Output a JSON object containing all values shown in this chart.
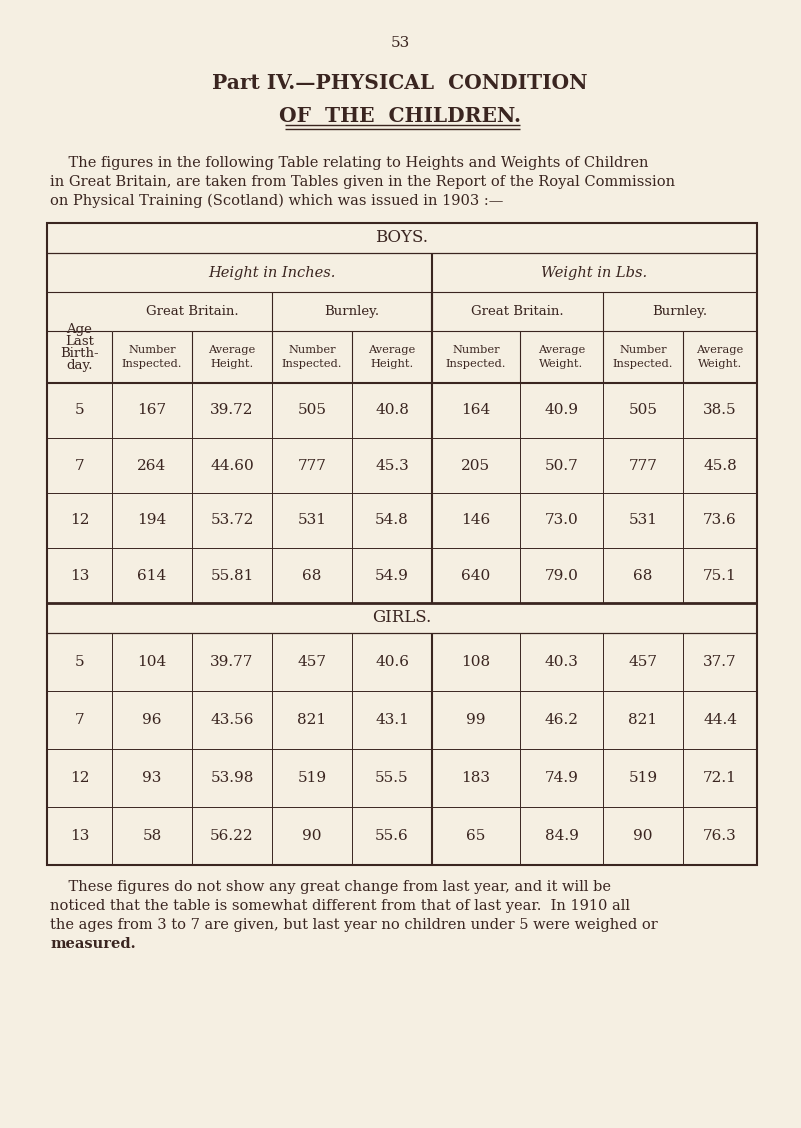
{
  "bg_color": "#f5efe2",
  "text_color": "#3a2520",
  "page_number": "53",
  "title_line1": "Part IV.—PHYSICAL  CONDITION",
  "title_line2": "OF  THE  CHILDREN.",
  "intro_text_1": "    The figures in the following Table relating to Heights and Weights of Children",
  "intro_text_2": "in Great Britain, are taken from Tables given in the Report of the Royal Commission",
  "intro_text_3": "on Physical Training (Scotland) which was issued in 1903 :—",
  "boys_label": "BOYS.",
  "girls_label": "GIRLS.",
  "col_header_1": "Height in Inches.",
  "col_header_2": "Weight in Lbs.",
  "sub_header_gb": "Great Britain.",
  "sub_header_bu": "Burnley.",
  "age_label_1": "Age",
  "age_label_2": "Last",
  "age_label_3": "Birth-",
  "age_label_4": "day.",
  "boys_data": [
    [
      5,
      "167",
      "39.72",
      "505",
      "40.8",
      "164",
      "40.9",
      "505",
      "38.5"
    ],
    [
      7,
      "264",
      "44.60",
      "777",
      "45.3",
      "205",
      "50.7",
      "777",
      "45.8"
    ],
    [
      12,
      "194",
      "53.72",
      "531",
      "54.8",
      "146",
      "73.0",
      "531",
      "73.6"
    ],
    [
      13,
      "614",
      "55.81",
      "68",
      "54.9",
      "640",
      "79.0",
      "68",
      "75.1"
    ]
  ],
  "girls_data": [
    [
      5,
      "104",
      "39.77",
      "457",
      "40.6",
      "108",
      "40.3",
      "457",
      "37.7"
    ],
    [
      7,
      "96",
      "43.56",
      "821",
      "43.1",
      "99",
      "46.2",
      "821",
      "44.4"
    ],
    [
      12,
      "93",
      "53.98",
      "519",
      "55.5",
      "183",
      "74.9",
      "519",
      "72.1"
    ],
    [
      13,
      "58",
      "56.22",
      "90",
      "55.6",
      "65",
      "84.9",
      "90",
      "76.3"
    ]
  ],
  "footer_text_1": "    These figures do not show any great change from last year, and it will be",
  "footer_text_2": "noticed that the table is somewhat different from that of last year.  In 1910 all",
  "footer_text_3": "the ages from 3 to 7 are given, but last year no children under 5 were weighed or",
  "footer_text_4": "measured.",
  "num_insp_h": "Number\nInspected.",
  "avg_height": "Average\nHeight.",
  "num_insp_w": "Number\nInspected.",
  "avg_weight": "Average\nWeight."
}
